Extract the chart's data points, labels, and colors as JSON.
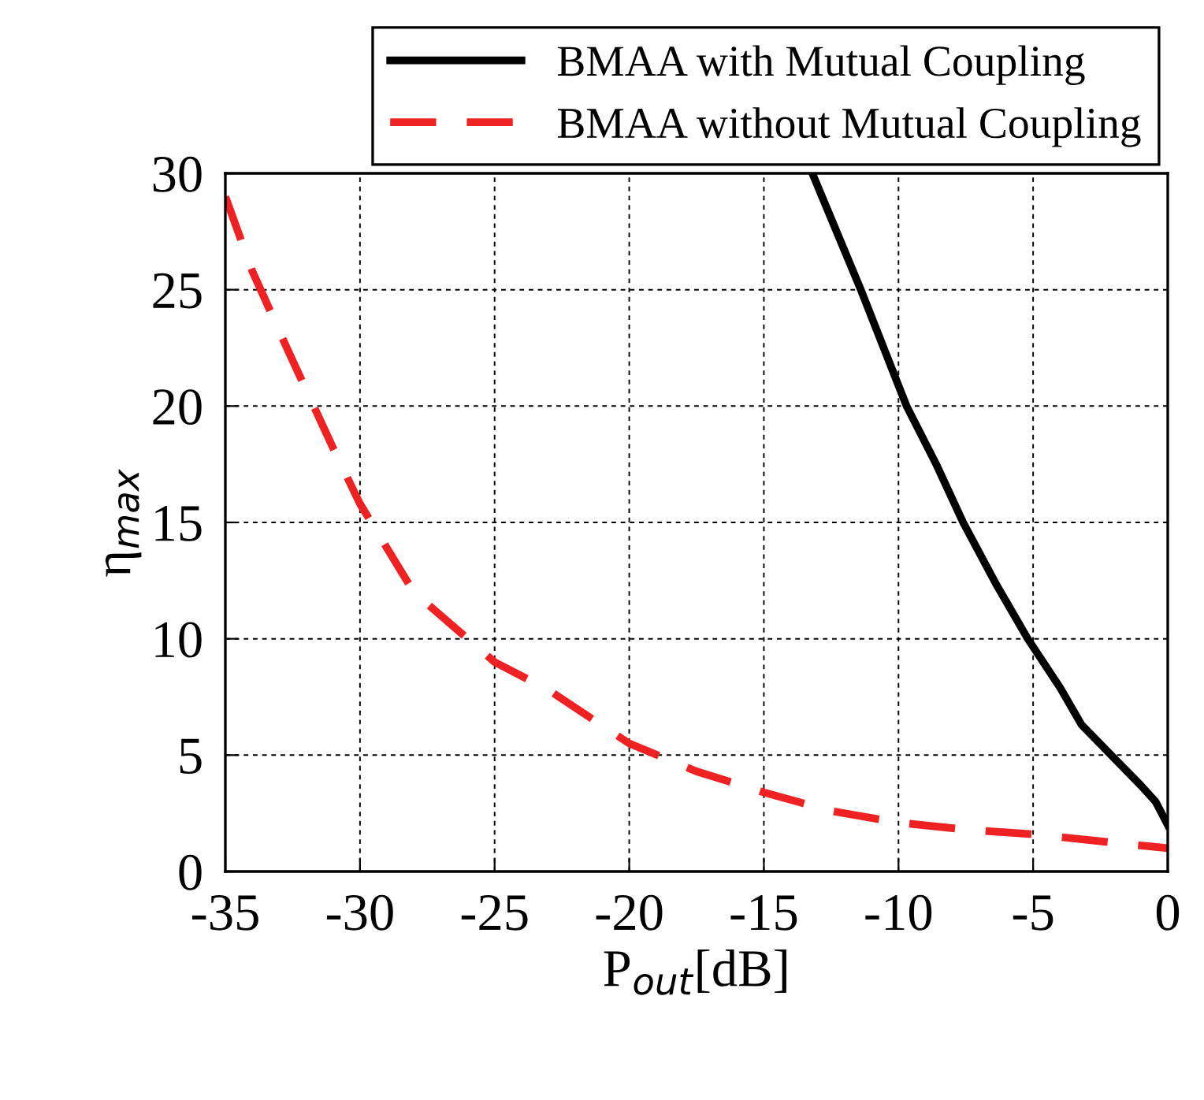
{
  "chart_data": {
    "type": "line",
    "xlabel": "P$_{out}$[dB]",
    "ylabel": "η$_{max}$",
    "xlim": [
      -35,
      0
    ],
    "ylim": [
      0,
      30
    ],
    "xticks": [
      -35,
      -30,
      -25,
      -20,
      -15,
      -10,
      -5,
      0
    ],
    "yticks": [
      0,
      5,
      10,
      15,
      20,
      25,
      30
    ],
    "grid": true,
    "legend": "top right",
    "series": [
      {
        "name": "BMAA with Mutual Coupling",
        "color": "#000000",
        "line_style": "solid",
        "x": [
          -13.2,
          -11.4,
          -9.7,
          -8.6,
          -7.6,
          -6.4,
          -5.2,
          -4,
          -3.2,
          -2.1,
          -1,
          -0.45,
          0
        ],
        "values": [
          30,
          25,
          20,
          17.5,
          15,
          12.4,
          10,
          7.9,
          6.3,
          5,
          3.7,
          3.0,
          2.0
        ]
      },
      {
        "name": "BMAA without Mutual Coupling",
        "color": "#ee2222",
        "line_style": "dashed",
        "x": [
          -35,
          -34,
          -32.6,
          -31,
          -30,
          -28,
          -26,
          -25,
          -23,
          -20,
          -17.5,
          -15,
          -12.5,
          -10,
          -7.5,
          -5,
          -2.5,
          0
        ],
        "values": [
          29,
          25.8,
          22.2,
          18.2,
          15.8,
          12,
          10,
          9.0,
          7.8,
          5.5,
          4.3,
          3.4,
          2.6,
          2.1,
          1.8,
          1.6,
          1.3,
          1.0
        ]
      }
    ]
  }
}
